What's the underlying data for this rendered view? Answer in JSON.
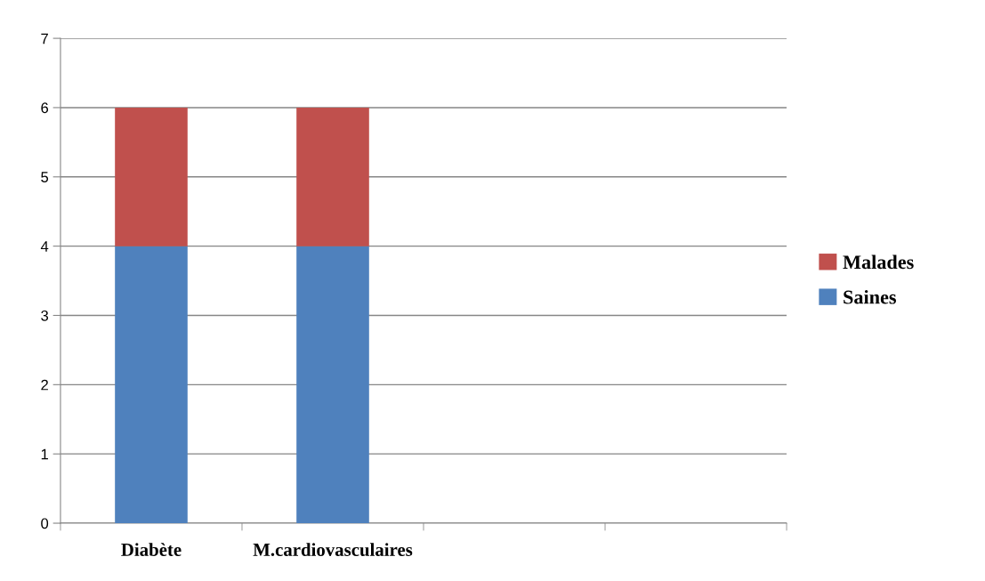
{
  "chart_data": {
    "type": "bar",
    "stacked": true,
    "categories": [
      "Diabète",
      "M.cardiovasculaires",
      null,
      null
    ],
    "series": [
      {
        "name": "Saines",
        "color": "#4f81bd",
        "values": [
          4,
          4,
          null,
          null
        ]
      },
      {
        "name": "Malades",
        "color": "#c0504d",
        "values": [
          2,
          2,
          null,
          null
        ]
      }
    ],
    "ylim": [
      0,
      7
    ],
    "yticks": [
      0,
      1,
      2,
      3,
      4,
      5,
      6,
      7
    ],
    "grid": "y",
    "legend": "right"
  }
}
